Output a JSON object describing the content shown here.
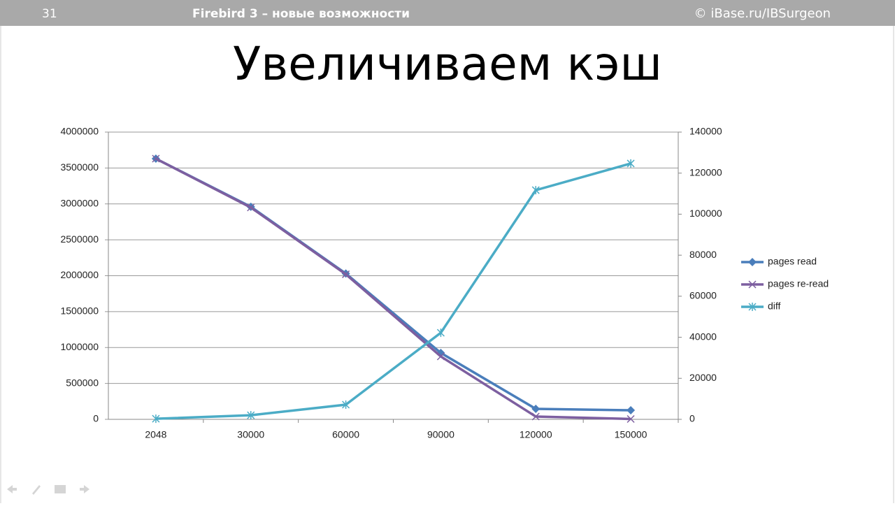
{
  "header": {
    "page_number": "31",
    "topic": "Firebird 3 – новые возможности",
    "copyright": "© iBase.ru/IBSurgeon"
  },
  "slide_title": "Увеличиваем кэш",
  "chart_data": {
    "type": "line",
    "categories": [
      "2048",
      "30000",
      "60000",
      "90000",
      "120000",
      "150000"
    ],
    "ylim": [
      0,
      4000000
    ],
    "yticks": [
      0,
      500000,
      1000000,
      1500000,
      2000000,
      2500000,
      3000000,
      3500000,
      4000000
    ],
    "y2lim": [
      0,
      140000
    ],
    "y2ticks": [
      0,
      20000,
      40000,
      60000,
      80000,
      100000,
      120000,
      140000
    ],
    "grid": true,
    "legend": "right",
    "series": [
      {
        "name": "pages read",
        "color": "#4a7ebb",
        "marker": "diamond",
        "values": [
          3630000,
          2960000,
          2030000,
          925000,
          146000,
          126000
        ]
      },
      {
        "name": "pages re-read",
        "color": "#7d5fa0",
        "marker": "x",
        "values": [
          3630000,
          2950000,
          2020000,
          876000,
          39000,
          5000
        ]
      },
      {
        "name": "diff",
        "color": "#4bacc6",
        "marker": "star",
        "axis": "y2",
        "values": [
          300,
          2000,
          7150,
          42200,
          111700,
          124700
        ]
      }
    ]
  }
}
